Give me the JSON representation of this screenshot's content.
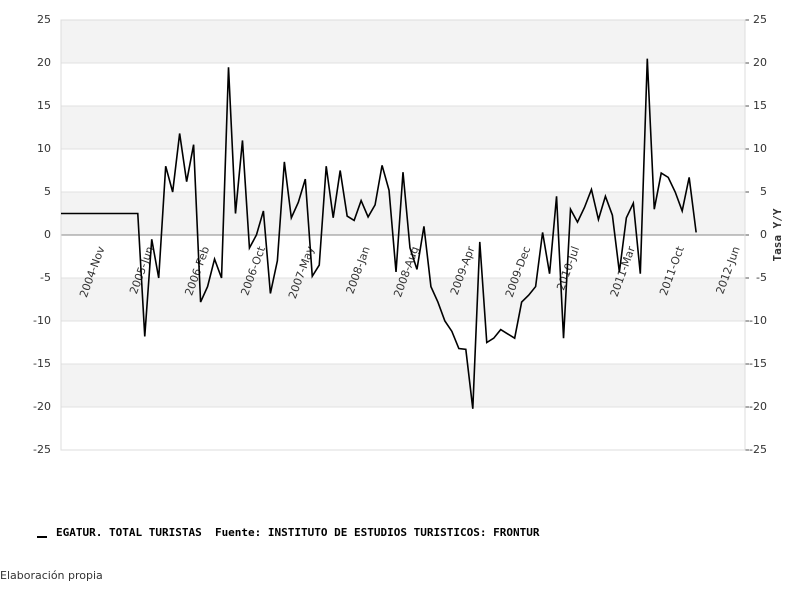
{
  "chart_data": {
    "type": "line",
    "y2_label": "Tasa Y/Y",
    "footer": "Elaboración propia",
    "categories": [
      null,
      null,
      null,
      null,
      null,
      "2004-Nov",
      null,
      null,
      null,
      null,
      null,
      null,
      "2005-Jun",
      null,
      null,
      null,
      null,
      null,
      null,
      null,
      "2006-Feb",
      null,
      null,
      null,
      null,
      null,
      null,
      null,
      "2006-Oct",
      null,
      null,
      null,
      null,
      null,
      null,
      "2007-May",
      null,
      null,
      null,
      null,
      null,
      null,
      null,
      "2008-Jan",
      null,
      null,
      null,
      null,
      null,
      null,
      "2008-Aug",
      null,
      null,
      null,
      null,
      null,
      null,
      null,
      "2009-Apr",
      null,
      null,
      null,
      null,
      null,
      null,
      null,
      "2009-Dec",
      null,
      null,
      null,
      null,
      null,
      null,
      "2010-Jul",
      null,
      null,
      null,
      null,
      null,
      null,
      null,
      "2011-Mar",
      null,
      null,
      null,
      null,
      null,
      null,
      "2011-Oct",
      null,
      null,
      null,
      null,
      null,
      null,
      null,
      "2012-Jun",
      null,
      null
    ],
    "series": [
      {
        "name": "EGATUR. TOTAL TURISTAS  Fuente: INSTITUTO DE ESTUDIOS TURISTICOS: FRONTUR",
        "color": "#000000",
        "values": [
          2.5,
          2.5,
          2.5,
          2.5,
          2.5,
          2.5,
          2.5,
          2.5,
          2.5,
          2.5,
          2.5,
          2.5,
          -11.8,
          -0.5,
          -5,
          8,
          5,
          11.8,
          6.2,
          10.5,
          -7.8,
          -6,
          -2.8,
          -5,
          19.5,
          2.5,
          11,
          -1.5,
          0,
          2.8,
          -6.8,
          -3,
          8.5,
          2,
          3.8,
          6.5,
          -4.8,
          -3.5,
          8,
          2,
          7.5,
          2.2,
          1.7,
          4,
          2.1,
          3.5,
          8.1,
          5.2,
          -4.3,
          7.3,
          -1.5,
          -4,
          1,
          -6,
          -7.8,
          -10,
          -11.2,
          -13.2,
          -13.3,
          -20.2,
          -0.8,
          -12.5,
          -12,
          -11,
          -11.5,
          -12,
          -7.8,
          -7,
          -6,
          0.3,
          -4.5,
          4.5,
          -12,
          3,
          1.5,
          3.2,
          5.3,
          1.8,
          4.5,
          2.3,
          -4.3,
          2,
          3.7,
          -4.5,
          20.5,
          3,
          7.2,
          6.7,
          5,
          2.8,
          6.7,
          0.3,
          null,
          null,
          null,
          null,
          null,
          null,
          null
        ]
      }
    ],
    "ylim": [
      -25,
      25
    ],
    "yticks": [
      -25,
      -20,
      -15,
      -10,
      -5,
      0,
      5,
      10,
      15,
      20,
      25
    ],
    "y2lim": [
      -25,
      25
    ],
    "y2ticks": [
      -25,
      -20,
      -15,
      -10,
      -5,
      0,
      5,
      10,
      15,
      20,
      25
    ],
    "grid": true
  }
}
